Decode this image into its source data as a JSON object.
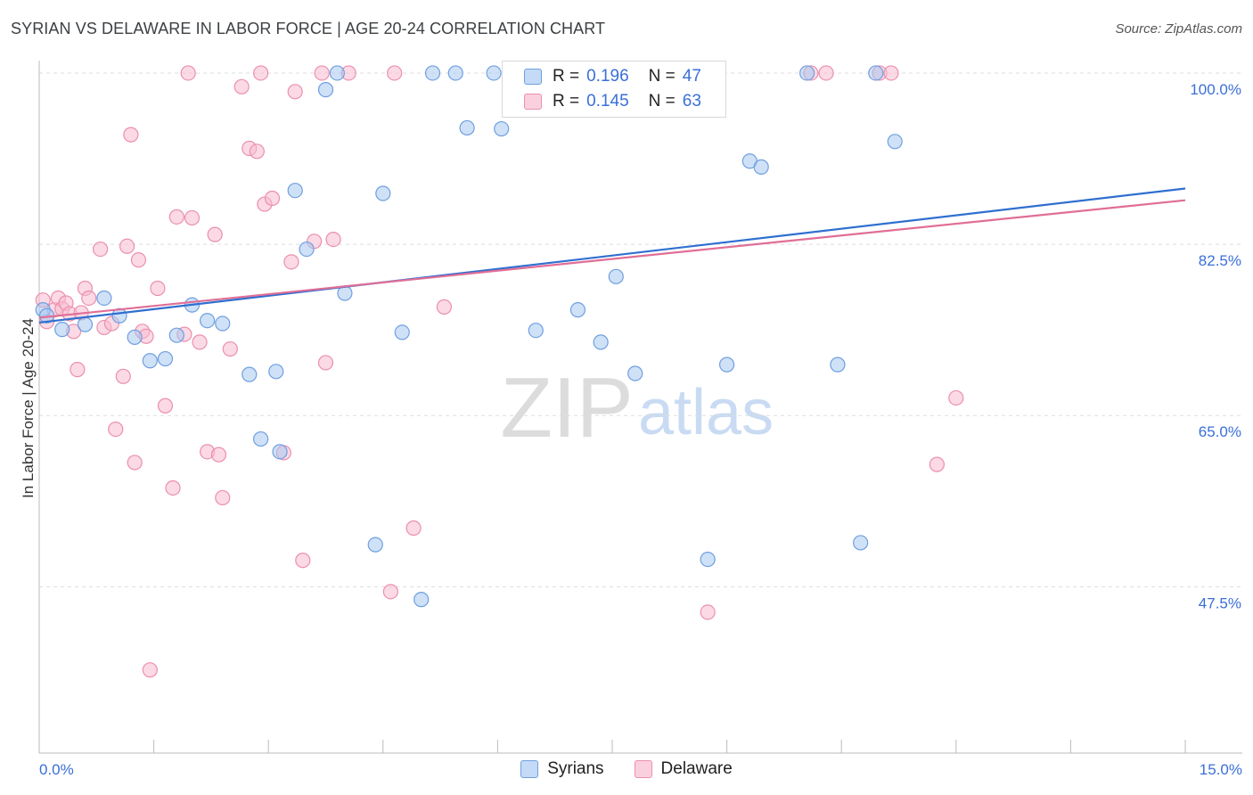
{
  "header": {
    "title": "SYRIAN VS DELAWARE IN LABOR FORCE | AGE 20-24 CORRELATION CHART",
    "source": "Source: ZipAtlas.com"
  },
  "watermark": {
    "zip": "ZIP",
    "atlas": "atlas"
  },
  "legend": {
    "syrians": {
      "r_label": "R =",
      "r_value": "0.196",
      "n_label": "N =",
      "n_value": "47"
    },
    "delaware": {
      "r_label": "R =",
      "r_value": "0.145",
      "n_label": "N =",
      "n_value": "63"
    }
  },
  "bottom_legend": {
    "syrians": "Syrians",
    "delaware": "Delaware"
  },
  "colors": {
    "syrians_fill": "#a8c8f0",
    "syrians_stroke": "#6f9fe0",
    "syrians_line": "#2f6fd0",
    "delaware_fill": "#f7bcd0",
    "delaware_stroke": "#eb8fae",
    "delaware_line": "#e06e96",
    "tick_label": "#3a6fd8",
    "grid": "#dddddd"
  },
  "chart_data": {
    "type": "scatter",
    "title": "SYRIAN VS DELAWARE IN LABOR FORCE | AGE 20-24 CORRELATION CHART",
    "xlabel": "",
    "ylabel": "In Labor Force | Age 20-24",
    "xlim": [
      0,
      15
    ],
    "ylim": [
      30.5,
      102
    ],
    "x_tick_labels": [
      {
        "value": 0,
        "label": "0.0%"
      },
      {
        "value": 15,
        "label": "15.0%"
      }
    ],
    "y_ticks": [
      {
        "value": 100,
        "label": "100.0%"
      },
      {
        "value": 82.5,
        "label": "82.5%"
      },
      {
        "value": 65,
        "label": "65.0%"
      },
      {
        "value": 47.5,
        "label": "47.5%"
      }
    ],
    "series": [
      {
        "name": "Syrians",
        "trend": {
          "x": [
            0,
            15
          ],
          "y": [
            74.5,
            88.2
          ]
        },
        "points": [
          [
            0.05,
            75.8
          ],
          [
            0.1,
            75.2
          ],
          [
            0.3,
            73.8
          ],
          [
            0.6,
            74.3
          ],
          [
            0.85,
            77.0
          ],
          [
            1.05,
            75.2
          ],
          [
            1.25,
            73.0
          ],
          [
            1.45,
            70.6
          ],
          [
            1.65,
            70.8
          ],
          [
            1.8,
            73.2
          ],
          [
            2.0,
            76.3
          ],
          [
            2.2,
            74.7
          ],
          [
            2.4,
            74.4
          ],
          [
            2.75,
            69.2
          ],
          [
            2.9,
            62.6
          ],
          [
            3.1,
            69.5
          ],
          [
            3.15,
            61.3
          ],
          [
            3.35,
            88.0
          ],
          [
            3.5,
            82.0
          ],
          [
            3.75,
            98.3
          ],
          [
            3.9,
            100.0
          ],
          [
            4.0,
            77.5
          ],
          [
            4.4,
            51.8
          ],
          [
            4.5,
            87.7
          ],
          [
            4.75,
            73.5
          ],
          [
            5.0,
            46.2
          ],
          [
            5.15,
            100.0
          ],
          [
            5.45,
            100.0
          ],
          [
            5.6,
            94.4
          ],
          [
            5.95,
            100.0
          ],
          [
            6.05,
            94.3
          ],
          [
            6.2,
            100.0
          ],
          [
            6.5,
            73.7
          ],
          [
            6.65,
            100.0
          ],
          [
            7.05,
            75.8
          ],
          [
            7.35,
            72.5
          ],
          [
            7.55,
            79.2
          ],
          [
            7.8,
            69.3
          ],
          [
            8.75,
            50.3
          ],
          [
            9.0,
            70.2
          ],
          [
            9.3,
            91.0
          ],
          [
            9.45,
            90.4
          ],
          [
            10.05,
            100.0
          ],
          [
            10.45,
            70.2
          ],
          [
            10.75,
            52.0
          ],
          [
            10.95,
            100.0
          ],
          [
            11.2,
            93.0
          ]
        ]
      },
      {
        "name": "Delaware",
        "trend": {
          "x": [
            0,
            15
          ],
          "y": [
            75.0,
            87.0
          ]
        },
        "points": [
          [
            0.05,
            76.8
          ],
          [
            0.1,
            74.6
          ],
          [
            0.2,
            75.8
          ],
          [
            0.25,
            77.0
          ],
          [
            0.3,
            75.9
          ],
          [
            0.35,
            76.5
          ],
          [
            0.4,
            75.4
          ],
          [
            0.45,
            73.6
          ],
          [
            0.5,
            69.7
          ],
          [
            0.55,
            75.5
          ],
          [
            0.6,
            78.0
          ],
          [
            0.65,
            77.0
          ],
          [
            0.8,
            82.0
          ],
          [
            0.85,
            74.0
          ],
          [
            0.95,
            74.4
          ],
          [
            1.0,
            63.6
          ],
          [
            1.1,
            69.0
          ],
          [
            1.15,
            82.3
          ],
          [
            1.2,
            93.7
          ],
          [
            1.25,
            60.2
          ],
          [
            1.3,
            80.9
          ],
          [
            1.35,
            73.6
          ],
          [
            1.4,
            73.1
          ],
          [
            1.45,
            39.0
          ],
          [
            1.55,
            78.0
          ],
          [
            1.65,
            66.0
          ],
          [
            1.75,
            57.6
          ],
          [
            1.8,
            85.3
          ],
          [
            1.9,
            73.3
          ],
          [
            1.95,
            100.0
          ],
          [
            2.0,
            85.2
          ],
          [
            2.1,
            72.5
          ],
          [
            2.2,
            61.3
          ],
          [
            2.3,
            83.5
          ],
          [
            2.35,
            61.0
          ],
          [
            2.4,
            56.6
          ],
          [
            2.5,
            71.8
          ],
          [
            2.65,
            98.6
          ],
          [
            2.75,
            92.3
          ],
          [
            2.85,
            92.0
          ],
          [
            2.9,
            100.0
          ],
          [
            2.95,
            86.6
          ],
          [
            3.05,
            87.2
          ],
          [
            3.2,
            61.2
          ],
          [
            3.3,
            80.7
          ],
          [
            3.35,
            98.1
          ],
          [
            3.45,
            50.2
          ],
          [
            3.6,
            82.8
          ],
          [
            3.7,
            100.0
          ],
          [
            3.75,
            70.4
          ],
          [
            3.85,
            83.0
          ],
          [
            4.05,
            100.0
          ],
          [
            4.6,
            47.0
          ],
          [
            4.65,
            100.0
          ],
          [
            4.9,
            53.5
          ],
          [
            5.3,
            76.1
          ],
          [
            8.75,
            44.9
          ],
          [
            10.1,
            100.0
          ],
          [
            10.3,
            100.0
          ],
          [
            11.0,
            100.0
          ],
          [
            11.15,
            100.0
          ],
          [
            11.75,
            60.0
          ],
          [
            12.0,
            66.8
          ]
        ]
      }
    ]
  }
}
